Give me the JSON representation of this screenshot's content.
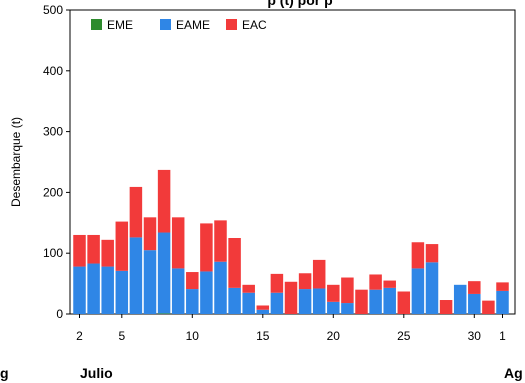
{
  "chart_data": {
    "type": "bar",
    "stacked": true,
    "title": "p (t) por p",
    "ylabel": "Desembarque (t)",
    "ylim": [
      0,
      500
    ],
    "yticks": [
      "0",
      "100",
      "200",
      "300",
      "400",
      "500"
    ],
    "xticks": [
      {
        "day": 2,
        "label": "2"
      },
      {
        "day": 5,
        "label": "5"
      },
      {
        "day": 10,
        "label": "10"
      },
      {
        "day": 15,
        "label": "15"
      },
      {
        "day": 20,
        "label": "20"
      },
      {
        "day": 25,
        "label": "25"
      },
      {
        "day": 30,
        "label": "30"
      },
      {
        "day": 32,
        "label": "1"
      }
    ],
    "month_labels": {
      "left": "g",
      "center": "Julio",
      "right": "Ag"
    },
    "legend_position": "top-left",
    "grid": false,
    "categories": [
      "2",
      "3",
      "4",
      "5",
      "6",
      "7",
      "8",
      "9",
      "10",
      "11",
      "12",
      "13",
      "14",
      "15",
      "16",
      "17",
      "18",
      "19",
      "20",
      "21",
      "22",
      "23",
      "24",
      "25",
      "26",
      "27",
      "28",
      "29",
      "30",
      "31",
      "1"
    ],
    "series": [
      {
        "name": "EME",
        "color": "#2e8b2e",
        "values": [
          0,
          0,
          0,
          0,
          0,
          0,
          1,
          0,
          0,
          0,
          0,
          0,
          0,
          0,
          0,
          0,
          0,
          0,
          0,
          0,
          0,
          0,
          0,
          0,
          0,
          0,
          0,
          0,
          0,
          0,
          0
        ]
      },
      {
        "name": "EAME",
        "color": "#2f86e6",
        "values": [
          78,
          83,
          78,
          71,
          126,
          105,
          133,
          75,
          41,
          70,
          86,
          43,
          35,
          7,
          35,
          0,
          41,
          42,
          20,
          18,
          0,
          40,
          43,
          0,
          75,
          85,
          0,
          48,
          33,
          0,
          38
        ]
      },
      {
        "name": "EAC",
        "color": "#f23a3a",
        "values": [
          52,
          47,
          44,
          81,
          83,
          54,
          103,
          84,
          28,
          79,
          68,
          82,
          13,
          7,
          31,
          53,
          26,
          47,
          28,
          42,
          40,
          25,
          12,
          37,
          43,
          30,
          23,
          0,
          21,
          22,
          14
        ]
      }
    ]
  }
}
